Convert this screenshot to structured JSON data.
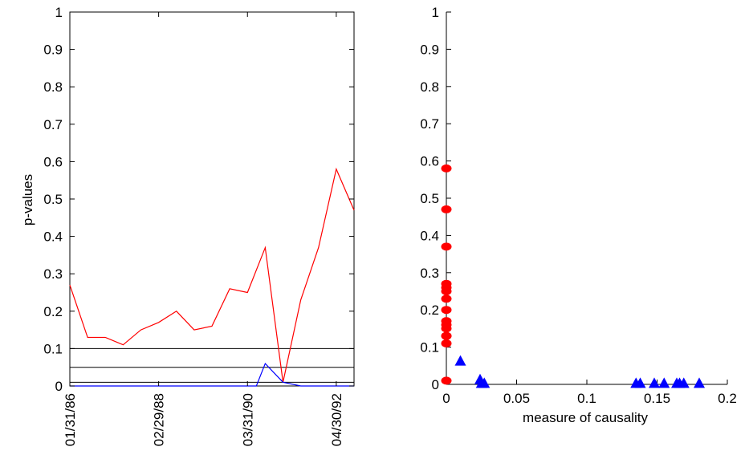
{
  "chart_data": [
    {
      "type": "line",
      "title": "",
      "xlabel": "",
      "ylabel": "p-values",
      "ylim": [
        0,
        1
      ],
      "yticks": [
        "0",
        "0.1",
        "0.2",
        "0.3",
        "0.4",
        "0.5",
        "0.6",
        "0.7",
        "0.8",
        "0.9",
        "1"
      ],
      "xlim": [
        1,
        17
      ],
      "xticks": [
        {
          "x": 1,
          "label": "01/31/86"
        },
        {
          "x": 6,
          "label": "02/29/88"
        },
        {
          "x": 11,
          "label": "03/31/90"
        },
        {
          "x": 16,
          "label": "04/30/92"
        }
      ],
      "series": [
        {
          "color": "#ff0000",
          "x": [
            1,
            2,
            3,
            4,
            5,
            6,
            7,
            8,
            9,
            10,
            11,
            12,
            13,
            14,
            15,
            16,
            17
          ],
          "values": [
            0.27,
            0.13,
            0.13,
            0.11,
            0.15,
            0.17,
            0.2,
            0.15,
            0.16,
            0.26,
            0.25,
            0.37,
            0.01,
            0.23,
            0.37,
            0.58,
            0.47
          ]
        },
        {
          "color": "#0000ff",
          "x": [
            1,
            2,
            3,
            4,
            5,
            6,
            7,
            8,
            9,
            10,
            11,
            11.5,
            12,
            13,
            14,
            15,
            16,
            17
          ],
          "values": [
            0,
            0,
            0,
            0,
            0,
            0,
            0,
            0,
            0,
            0,
            0,
            0,
            0.06,
            0.01,
            0,
            0,
            0,
            0
          ]
        }
      ],
      "reference_lines": [
        {
          "y": 0.1,
          "color": "#000000"
        },
        {
          "y": 0.05,
          "color": "#000000"
        },
        {
          "y": 0.01,
          "color": "#000000"
        }
      ],
      "grid": false
    },
    {
      "type": "scatter",
      "title": "",
      "xlabel": "measure of causality",
      "ylabel": "",
      "xlim": [
        0,
        0.2
      ],
      "ylim": [
        0,
        1
      ],
      "xticks": [
        "0",
        "0.05",
        "0.1",
        "0.15",
        "0.2"
      ],
      "yticks": [
        "0",
        "0.1",
        "0.2",
        "0.3",
        "0.4",
        "0.5",
        "0.6",
        "0.7",
        "0.8",
        "0.9",
        "1"
      ],
      "series": [
        {
          "marker": "circle",
          "color": "#ff0000",
          "points": [
            [
              0,
              0.58
            ],
            [
              0,
              0.47
            ],
            [
              0,
              0.37
            ],
            [
              0,
              0.27
            ],
            [
              0,
              0.26
            ],
            [
              0,
              0.25
            ],
            [
              0,
              0.23
            ],
            [
              0,
              0.2
            ],
            [
              0,
              0.17
            ],
            [
              0,
              0.16
            ],
            [
              0,
              0.15
            ],
            [
              0,
              0.13
            ],
            [
              0,
              0.13
            ],
            [
              0,
              0.11
            ],
            [
              0,
              0.01
            ]
          ]
        },
        {
          "marker": "triangle",
          "color": "#0000ff",
          "points": [
            [
              0.01,
              0.06
            ],
            [
              0.024,
              0.01
            ],
            [
              0.025,
              0.0
            ],
            [
              0.027,
              0.0
            ],
            [
              0.135,
              0.0
            ],
            [
              0.138,
              0.0
            ],
            [
              0.148,
              0.0
            ],
            [
              0.155,
              0.0
            ],
            [
              0.164,
              0.0
            ],
            [
              0.166,
              0.0
            ],
            [
              0.169,
              0.0
            ],
            [
              0.18,
              0.0
            ]
          ]
        }
      ],
      "grid": false
    }
  ]
}
